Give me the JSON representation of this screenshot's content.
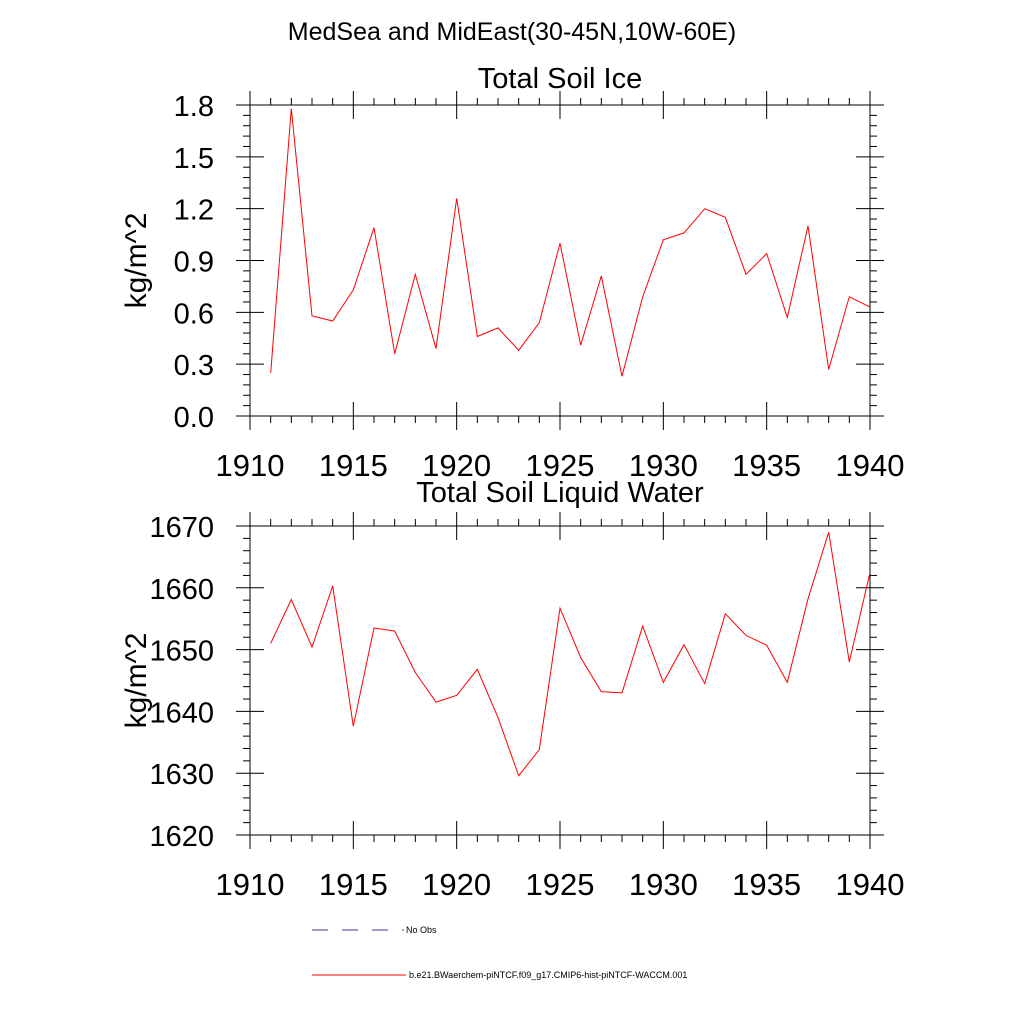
{
  "figure": {
    "main_title": "MedSea and MidEast(30-45N,10W-60E)"
  },
  "chart_data": [
    {
      "type": "line",
      "title": "Total Soil Ice",
      "xlabel": "",
      "ylabel": "kg/m^2",
      "xlim": [
        1910,
        1940
      ],
      "ylim": [
        0.0,
        1.8
      ],
      "x_ticks": [
        1910,
        1915,
        1920,
        1925,
        1930,
        1935,
        1940
      ],
      "y_ticks": [
        "0.0",
        "0.3",
        "0.6",
        "0.9",
        "1.2",
        "1.5",
        "1.8"
      ],
      "grid": false,
      "series": [
        {
          "color": "#ff0000",
          "x": [
            1911,
            1912,
            1913,
            1914,
            1915,
            1916,
            1917,
            1918,
            1919,
            1920,
            1921,
            1922,
            1923,
            1924,
            1925,
            1926,
            1927,
            1928,
            1929,
            1930,
            1931,
            1932,
            1933,
            1934,
            1935,
            1936,
            1937,
            1938,
            1939,
            1940
          ],
          "values": [
            0.25,
            1.78,
            0.58,
            0.55,
            0.73,
            1.09,
            0.36,
            0.82,
            0.39,
            1.26,
            0.46,
            0.51,
            0.38,
            0.54,
            1.0,
            0.41,
            0.81,
            0.23,
            0.69,
            1.02,
            1.06,
            1.2,
            1.15,
            0.82,
            0.94,
            0.57,
            1.1,
            0.27,
            0.69,
            0.63
          ]
        }
      ]
    },
    {
      "type": "line",
      "title": "Total Soil Liquid Water",
      "xlabel": "",
      "ylabel": "kg/m^2",
      "xlim": [
        1910,
        1940
      ],
      "ylim": [
        1620,
        1670
      ],
      "x_ticks": [
        1910,
        1915,
        1920,
        1925,
        1930,
        1935,
        1940
      ],
      "y_ticks": [
        "1620",
        "1630",
        "1640",
        "1650",
        "1660",
        "1670"
      ],
      "grid": false,
      "series": [
        {
          "color": "#ff0000",
          "x": [
            1911,
            1912,
            1913,
            1914,
            1915,
            1916,
            1917,
            1918,
            1919,
            1920,
            1921,
            1922,
            1923,
            1924,
            1925,
            1926,
            1927,
            1928,
            1929,
            1930,
            1931,
            1932,
            1933,
            1934,
            1935,
            1936,
            1937,
            1938,
            1939,
            1940
          ],
          "values": [
            1651,
            1658.1,
            1650.4,
            1660.3,
            1637.6,
            1653.5,
            1653,
            1646.3,
            1641.5,
            1642.6,
            1646.8,
            1639,
            1629.6,
            1633.8,
            1656.7,
            1648.7,
            1643.2,
            1643,
            1653.8,
            1644.7,
            1650.8,
            1644.5,
            1655.8,
            1652.3,
            1650.7,
            1644.7,
            1658.2,
            1669,
            1648,
            1662.5
          ]
        }
      ]
    }
  ],
  "legend": {
    "placement": "bottom-center",
    "items": [
      {
        "label": "No Obs",
        "color": "#3a3aa8",
        "style": "dashed"
      },
      {
        "label": "b.e21.BWaerchem-piNTCF.f09_g17.CMIP6-hist-piNTCF-WACCM.001",
        "color": "#ff0000",
        "style": "solid"
      }
    ]
  }
}
